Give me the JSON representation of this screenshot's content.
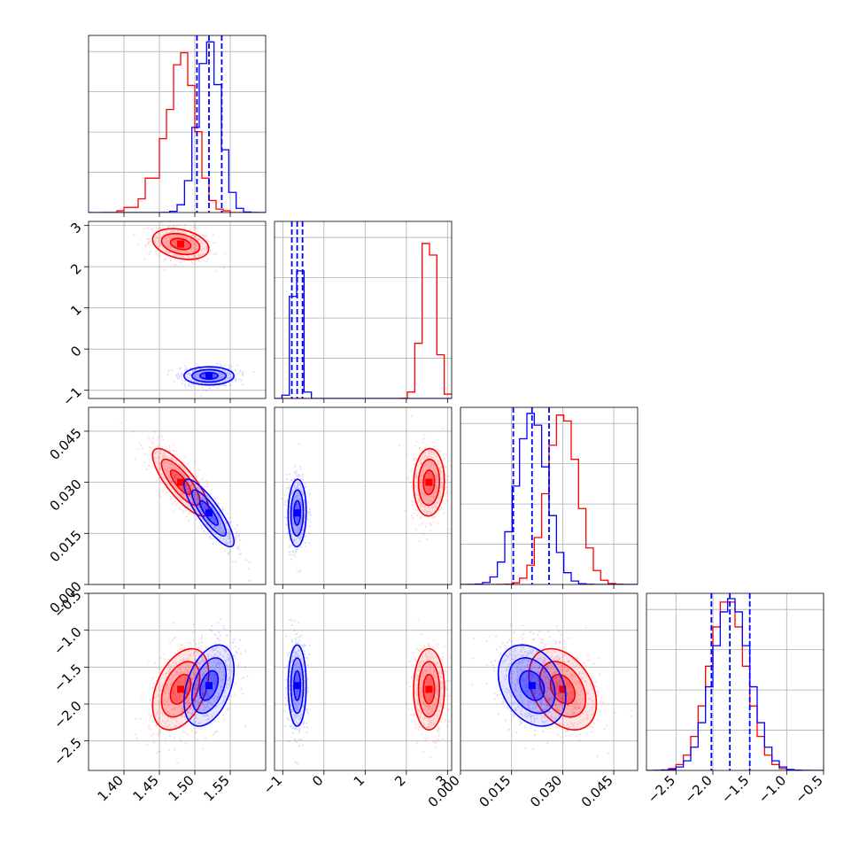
{
  "chart_data": {
    "type": "scatter",
    "title": "",
    "colors": {
      "red": "#ff0000",
      "blue": "#0000ff",
      "grid": "#b0b0b0"
    },
    "parameters": [
      {
        "range": [
          1.35,
          1.6
        ],
        "ticks": [
          1.4,
          1.45,
          1.5,
          1.55
        ],
        "tick_labels": [
          "1.40",
          "1.45",
          "1.50",
          "1.55"
        ]
      },
      {
        "range": [
          -1.2,
          3.1
        ],
        "ticks": [
          -1,
          0,
          1,
          2,
          3
        ],
        "tick_labels": [
          "−1",
          "0",
          "1",
          "2",
          "3"
        ]
      },
      {
        "range": [
          0.0,
          0.052
        ],
        "ticks": [
          0.0,
          0.015,
          0.03,
          0.045
        ],
        "tick_labels": [
          "0.000",
          "0.015",
          "0.030",
          "0.045"
        ]
      },
      {
        "range": [
          -2.9,
          -0.5
        ],
        "ticks": [
          -2.5,
          -2.0,
          -1.5,
          -1.0,
          -0.5
        ],
        "tick_labels": [
          "−2.5",
          "−2.0",
          "−1.5",
          "−1.0",
          "−0.5"
        ]
      }
    ],
    "series": [
      {
        "color": "red",
        "mean": [
          1.48,
          2.55,
          0.03,
          -1.8
        ],
        "std": [
          0.018,
          0.17,
          0.0045,
          0.25
        ],
        "corr": {
          "0-1": -0.3,
          "0-2": -0.8,
          "0-3": 0.4,
          "1-2": 0.05,
          "1-3": 0.0,
          "2-3": -0.35
        },
        "hist_bins": [
          [
            1.37,
            0.0
          ],
          [
            1.38,
            0.0
          ],
          [
            1.39,
            0.01
          ],
          [
            1.4,
            0.03
          ],
          [
            1.41,
            0.03
          ],
          [
            1.42,
            0.08
          ],
          [
            1.43,
            0.2
          ],
          [
            1.44,
            0.2
          ],
          [
            1.45,
            0.43
          ],
          [
            1.46,
            0.6
          ],
          [
            1.47,
            0.86
          ],
          [
            1.48,
            0.93
          ],
          [
            1.49,
            0.74
          ],
          [
            1.5,
            0.47
          ],
          [
            1.51,
            0.2
          ],
          [
            1.52,
            0.07
          ],
          [
            1.53,
            0.02
          ],
          [
            1.54,
            0.01
          ],
          [
            1.55,
            0.0
          ],
          [
            1.56,
            0.0
          ]
        ]
      },
      {
        "color": "blue",
        "mean": [
          1.52,
          -0.65,
          0.021,
          -1.75
        ],
        "std": [
          0.016,
          0.1,
          0.0045,
          0.25
        ],
        "corr": {
          "0-1": 0.0,
          "0-2": -0.85,
          "0-3": 0.4,
          "1-2": 0.05,
          "1-3": 0.0,
          "2-3": -0.3
        },
        "quantiles": [
          [
            1.503,
            1.52,
            1.538
          ],
          [
            -0.78,
            -0.65,
            -0.52
          ],
          [
            0.0155,
            0.021,
            0.026
          ],
          [
            -2.02,
            -1.77,
            -1.5
          ]
        ]
      }
    ]
  }
}
